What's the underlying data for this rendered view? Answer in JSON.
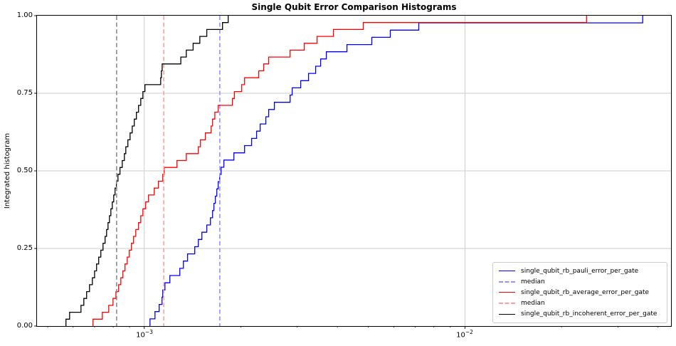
{
  "title": "Single Qubit Error Comparison Histograms",
  "ylabel": "Integrated histogram",
  "chart_data": {
    "type": "line",
    "subtype": "integrated_histogram_step_cdf",
    "title": "Single Qubit Error Comparison Histograms",
    "xlabel": "",
    "ylabel": "Integrated histogram",
    "xscale": "log",
    "xlim": [
      0.000463,
      0.0439
    ],
    "ylim": [
      0,
      1
    ],
    "grid": true,
    "xgrid_values": [
      0.001,
      0.01
    ],
    "ygrid_values": [
      0.25,
      0.5,
      0.75
    ],
    "ytick_values": [
      1.0,
      0.75,
      0.5,
      0.25,
      0.0
    ],
    "ytick_labels": [
      "1.00",
      "0.75",
      "0.50",
      "0.25",
      "0.00"
    ],
    "xticks": [
      {
        "base": "10",
        "exponent": "−3",
        "value": 0.001
      },
      {
        "base": "10",
        "exponent": "−2",
        "value": 0.01
      }
    ],
    "legend_position": "lower right",
    "series": [
      {
        "name": "single_qubit_rb_pauli_error_per_gate",
        "color": "#0000ff",
        "linestyle": "solid",
        "note": "cumulative fraction rises 1/N per value, N = values.length",
        "values": [
          0.001042,
          0.00108,
          0.001113,
          0.001136,
          0.001142,
          0.00116,
          0.001202,
          0.001291,
          0.001324,
          0.001365,
          0.001437,
          0.001474,
          0.001512,
          0.001567,
          0.001608,
          0.001633,
          0.001649,
          0.001666,
          0.001684,
          0.0017,
          0.001718,
          0.001736,
          0.001771,
          0.001903,
          0.002055,
          0.002162,
          0.00224,
          0.002298,
          0.002394,
          0.002444,
          0.002546,
          0.002849,
          0.002892,
          0.003075,
          0.003252,
          0.003423,
          0.003548,
          0.003695,
          0.004285,
          0.005122,
          0.005849,
          0.007178,
          0.03583
        ]
      },
      {
        "name": "single_qubit_rb_average_error_per_gate",
        "color": "#ff0000",
        "linestyle": "solid",
        "values": [
          0.000692,
          0.00074,
          0.000775,
          0.000799,
          0.000816,
          0.000832,
          0.000845,
          0.000858,
          0.000871,
          0.000885,
          0.000898,
          0.000912,
          0.000926,
          0.000941,
          0.00096,
          0.000975,
          0.00099,
          0.00101,
          0.001031,
          0.001074,
          0.001107,
          0.001142,
          0.001154,
          0.001265,
          0.001352,
          0.001474,
          0.001497,
          0.001551,
          0.001616,
          0.001633,
          0.00166,
          0.0017,
          0.001883,
          0.00191,
          0.002013,
          0.002055,
          0.002275,
          0.002358,
          0.002444,
          0.002849,
          0.003155,
          0.003458,
          0.00389,
          0.004819,
          0.02394
        ]
      },
      {
        "name": "single_qubit_rb_incoherent_error_per_gate",
        "color": "#000000",
        "linestyle": "solid",
        "values": [
          0.00057,
          0.000585,
          0.000635,
          0.000648,
          0.000661,
          0.000675,
          0.000689,
          0.0007,
          0.00071,
          0.000721,
          0.000732,
          0.000744,
          0.000755,
          0.000763,
          0.000771,
          0.000779,
          0.000787,
          0.000795,
          0.000803,
          0.000811,
          0.000819,
          0.000828,
          0.00084,
          0.000854,
          0.000867,
          0.000876,
          0.000889,
          0.000903,
          0.000917,
          0.000931,
          0.000945,
          0.00096,
          0.000975,
          0.00099,
          0.001005,
          0.001125,
          0.001131,
          0.001137,
          0.0013,
          0.001352,
          0.00142,
          0.00149,
          0.001567,
          0.001754,
          0.001827
        ]
      }
    ],
    "medians": [
      {
        "series": "single_qubit_rb_pauli_error_per_gate",
        "value": 0.00172,
        "color": "#9494ff",
        "linestyle": "dashed"
      },
      {
        "series": "single_qubit_rb_average_error_per_gate",
        "value": 0.00115,
        "color": "#ff9f9f",
        "linestyle": "dashed"
      },
      {
        "series": "single_qubit_rb_incoherent_error_per_gate",
        "value": 0.00082,
        "color": "#8c8c8c",
        "linestyle": "dashed"
      }
    ]
  },
  "legend": {
    "items": [
      {
        "label": "single_qubit_rb_pauli_error_per_gate",
        "color": "#0000ff",
        "dashed": false
      },
      {
        "label": "median",
        "color": "#9494ff",
        "dashed": true
      },
      {
        "label": "single_qubit_rb_average_error_per_gate",
        "color": "#ff0000",
        "dashed": false
      },
      {
        "label": "median",
        "color": "#ff9f9f",
        "dashed": true
      },
      {
        "label": "single_qubit_rb_incoherent_error_per_gate",
        "color": "#000000",
        "dashed": false
      }
    ]
  },
  "colors": {
    "gridline": "#cccccc",
    "spine": "#000000",
    "background": "#ffffff"
  }
}
